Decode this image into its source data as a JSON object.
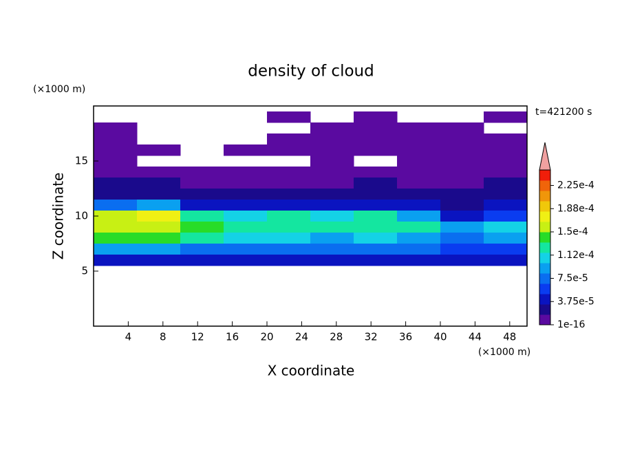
{
  "chart_data": {
    "type": "contour",
    "title": "density of cloud",
    "xlabel": "X coordinate",
    "ylabel": "Z coordinate",
    "xunit": "(×1000 m)",
    "yunit": "(×1000 m)",
    "time_label": "t=421200 s",
    "xlim": [
      0,
      50
    ],
    "ylim": [
      0,
      20
    ],
    "xticks": [
      4,
      8,
      12,
      16,
      20,
      24,
      28,
      32,
      36,
      40,
      44,
      48
    ],
    "yticks": [
      5,
      10,
      15
    ],
    "field": {
      "x": [
        2.5,
        7.5,
        12.5,
        17.5,
        22.5,
        27.5,
        32.5,
        37.5,
        42.5,
        47.5
      ],
      "y": [
        19,
        18,
        17,
        16,
        15,
        14,
        13,
        12,
        11,
        10,
        9,
        8,
        7,
        6
      ],
      "values": [
        [
          null,
          null,
          null,
          null,
          1e-16,
          null,
          1e-16,
          null,
          null,
          1e-16
        ],
        [
          1e-16,
          null,
          null,
          null,
          null,
          1e-16,
          1e-16,
          1e-16,
          1e-16,
          null
        ],
        [
          1e-16,
          null,
          null,
          null,
          1e-16,
          1e-16,
          1e-16,
          1e-16,
          1e-16,
          1e-16
        ],
        [
          1e-16,
          1e-16,
          null,
          1e-16,
          1e-16,
          1e-16,
          1e-16,
          1e-16,
          1e-16,
          1e-16
        ],
        [
          1e-16,
          null,
          null,
          null,
          null,
          1e-16,
          null,
          1e-16,
          1e-16,
          1e-16
        ],
        [
          1e-16,
          1e-16,
          1e-16,
          1e-16,
          1e-16,
          1e-16,
          1e-16,
          1e-16,
          1e-16,
          1e-16
        ],
        [
          2e-05,
          2e-05,
          1e-05,
          1e-05,
          1e-05,
          1e-05,
          2e-05,
          1e-05,
          1e-05,
          2e-05
        ],
        [
          3e-05,
          3e-05,
          3e-05,
          3e-05,
          3e-05,
          3e-05,
          3e-05,
          3e-05,
          3e-05,
          3e-05
        ],
        [
          7e-05,
          0.0001,
          5e-05,
          5e-05,
          5e-05,
          5e-05,
          5e-05,
          5e-05,
          3e-05,
          4e-05
        ],
        [
          0.00016,
          0.00017,
          0.00013,
          0.00011,
          0.00012,
          0.00011,
          0.00012,
          9e-05,
          5e-05,
          6e-05
        ],
        [
          0.00016,
          0.00016,
          0.00014,
          0.00013,
          0.00013,
          0.00012,
          0.00013,
          0.00012,
          9e-05,
          0.00011
        ],
        [
          0.00014,
          0.00014,
          0.00012,
          0.00011,
          0.00011,
          0.0001,
          0.00011,
          0.0001,
          8e-05,
          9e-05
        ],
        [
          9e-05,
          9e-05,
          8e-05,
          8e-05,
          8e-05,
          7e-05,
          7e-05,
          7e-05,
          6e-05,
          6e-05
        ],
        [
          4e-05,
          4e-05,
          4e-05,
          4e-05,
          4e-05,
          4e-05,
          4e-05,
          4e-05,
          4e-05,
          4e-05
        ]
      ]
    },
    "colorbar": {
      "lim": [
        1e-16,
        0.00025
      ],
      "ticks": [
        1e-16,
        {
          "value": 3.75e-05,
          "label": "3.75e-5"
        },
        {
          "value": 7.5e-05,
          "label": "7.5e-5"
        },
        {
          "value": 0.0001125,
          "label": "1.12e-4"
        },
        {
          "value": 0.00015,
          "label": "1.5e-4"
        },
        {
          "value": 0.0001875,
          "label": "1.88e-4"
        },
        {
          "value": 0.000225,
          "label": "2.25e-4"
        }
      ],
      "colors": [
        "#5a0aa0",
        "#1a0a8c",
        "#0a14c0",
        "#0a3cf0",
        "#0a6ef0",
        "#0aa0f0",
        "#14d2e6",
        "#14e6a0",
        "#28dc28",
        "#c8f014",
        "#f0f014",
        "#f0c80a",
        "#f0960a",
        "#f0640a",
        "#f01e0a"
      ],
      "over_color": "#f0a0a0"
    }
  }
}
